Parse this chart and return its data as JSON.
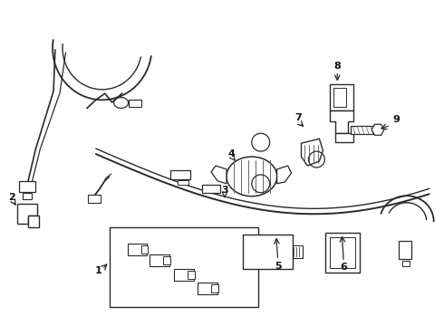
{
  "bg_color": "#ffffff",
  "line_color": "#2a2a2a",
  "figsize": [
    4.9,
    3.6
  ],
  "dpi": 100,
  "harness_color": "#2a2a2a",
  "label_color": "#111111"
}
